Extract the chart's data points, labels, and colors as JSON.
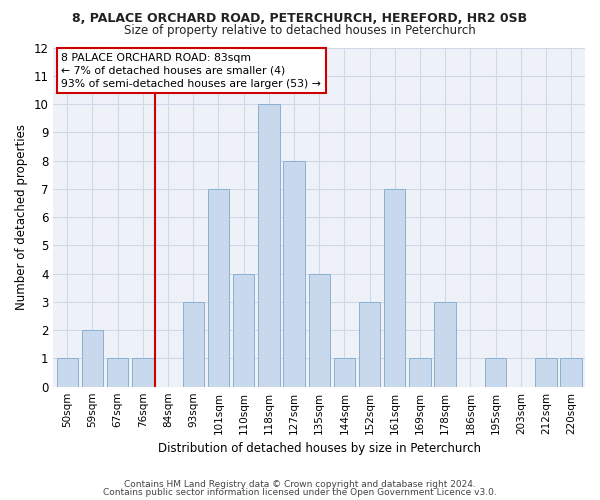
{
  "title1": "8, PALACE ORCHARD ROAD, PETERCHURCH, HEREFORD, HR2 0SB",
  "title2": "Size of property relative to detached houses in Peterchurch",
  "xlabel": "Distribution of detached houses by size in Peterchurch",
  "ylabel": "Number of detached properties",
  "categories": [
    "50sqm",
    "59sqm",
    "67sqm",
    "76sqm",
    "84sqm",
    "93sqm",
    "101sqm",
    "110sqm",
    "118sqm",
    "127sqm",
    "135sqm",
    "144sqm",
    "152sqm",
    "161sqm",
    "169sqm",
    "178sqm",
    "186sqm",
    "195sqm",
    "203sqm",
    "212sqm",
    "220sqm"
  ],
  "values": [
    1,
    2,
    1,
    1,
    0,
    3,
    7,
    4,
    10,
    8,
    4,
    1,
    3,
    7,
    1,
    3,
    0,
    1,
    0,
    1,
    1
  ],
  "bar_color": "#c9d9ed",
  "bar_edgecolor": "#8ab0d0",
  "highlight_line_index": 4,
  "highlight_line_color": "#cc0000",
  "annotation_line1": "8 PALACE ORCHARD ROAD: 83sqm",
  "annotation_line2": "← 7% of detached houses are smaller (4)",
  "annotation_line3": "93% of semi-detached houses are larger (53) →",
  "ylim": [
    0,
    12
  ],
  "yticks": [
    0,
    1,
    2,
    3,
    4,
    5,
    6,
    7,
    8,
    9,
    10,
    11,
    12
  ],
  "footer1": "Contains HM Land Registry data © Crown copyright and database right 2024.",
  "footer2": "Contains public sector information licensed under the Open Government Licence v3.0.",
  "grid_color": "#d0d8e8",
  "background_color": "#eef2f8"
}
